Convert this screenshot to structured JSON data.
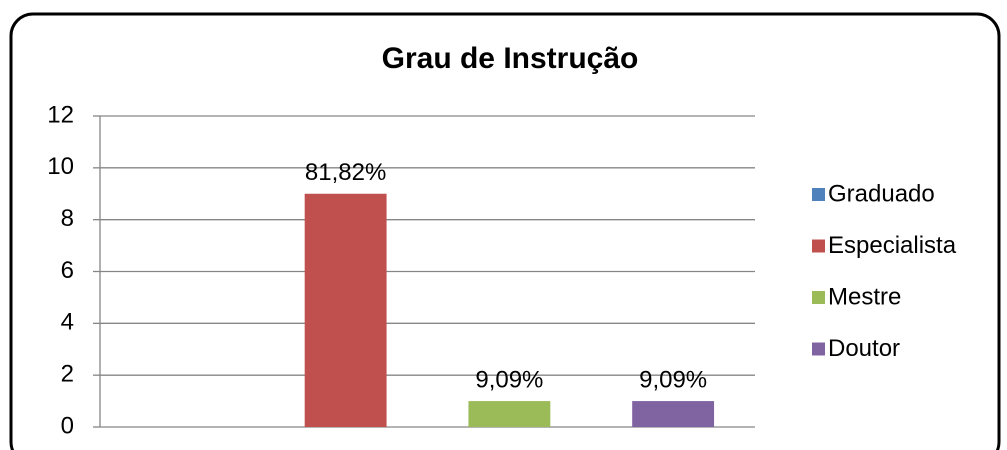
{
  "chart_data": {
    "type": "bar",
    "title": "Grau de Instrução",
    "series": [
      {
        "name": "Graduado",
        "color": "#4f81bd",
        "values": [
          0
        ],
        "value_labels": [
          null
        ]
      },
      {
        "name": "Especialista",
        "color": "#c0504d",
        "values": [
          9
        ],
        "value_labels": [
          "81,82%"
        ]
      },
      {
        "name": "Mestre",
        "color": "#9bbb59",
        "values": [
          1
        ],
        "value_labels": [
          "9,09%"
        ]
      },
      {
        "name": "Doutor",
        "color": "#8064a2",
        "values": [
          1
        ],
        "value_labels": [
          "9,09%"
        ]
      }
    ],
    "ylim": [
      0,
      12
    ],
    "yticks": [
      0,
      2,
      4,
      6,
      8,
      10,
      12
    ],
    "grid": true,
    "legend": "right"
  }
}
